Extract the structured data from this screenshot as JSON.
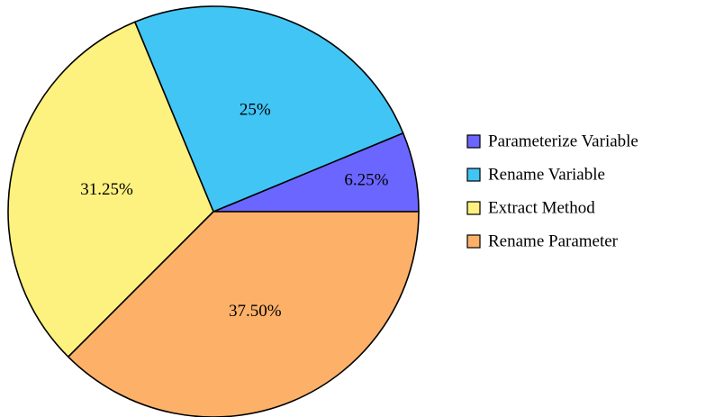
{
  "chart_data": {
    "type": "pie",
    "categories": [
      "Parameterize Variable",
      "Rename Variable",
      "Extract Method",
      "Rename Parameter"
    ],
    "values": [
      6.25,
      25,
      31.25,
      37.5
    ],
    "value_labels": [
      "6.25%",
      "25%",
      "31.25%",
      "37.50%"
    ],
    "colors": [
      "#6b66ff",
      "#41c5f5",
      "#fdf17f",
      "#fdb168"
    ],
    "legend": "right"
  }
}
